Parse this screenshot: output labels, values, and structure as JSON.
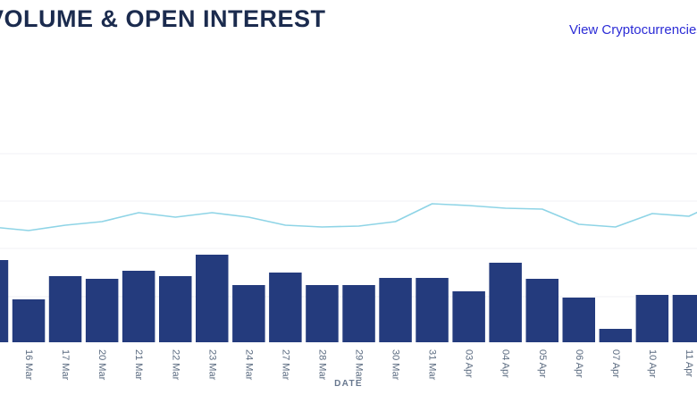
{
  "header": {
    "title": "VOLUME & OPEN INTEREST",
    "link_label": "View Cryptocurrencies"
  },
  "chart_data": {
    "type": "bar",
    "subtype": "combo_bar_line",
    "title": "VOLUME & OPEN INTEREST",
    "xlabel": "DATE",
    "ylabel": "",
    "y_axis_tick_labels_visible": false,
    "legend_position": "none",
    "grid": "horizontal",
    "categories": [
      "",
      "16 Mar",
      "17 Mar",
      "20 Mar",
      "21 Mar",
      "22 Mar",
      "23 Mar",
      "24 Mar",
      "27 Mar",
      "28 Mar",
      "29 Mar",
      "30 Mar",
      "31 Mar",
      "03 Apr",
      "04 Apr",
      "05 Apr",
      "06 Apr",
      "07 Apr",
      "10 Apr",
      "11 Apr"
    ],
    "first_bar_clipped_at_left_edge": true,
    "last_bar_clipped_at_right_edge": true,
    "units": "relative height (y-axis labels not visible in screenshot)",
    "series": [
      {
        "name": "Volume",
        "type": "bar",
        "color": "#243b7d",
        "values": [
          92,
          48,
          74,
          71,
          80,
          74,
          98,
          64,
          78,
          64,
          64,
          72,
          72,
          57,
          89,
          71,
          50,
          15,
          53,
          53
        ]
      },
      {
        "name": "Open Interest",
        "type": "line",
        "color": "#8ed4e6",
        "values": [
          129,
          125,
          131,
          135,
          145,
          140,
          145,
          140,
          131,
          129,
          130,
          135,
          155,
          153,
          150,
          149,
          132,
          129,
          144,
          141
        ]
      }
    ],
    "colors": {
      "bar": "#243b7d",
      "line": "#8ed4e6",
      "gridline": "#f1f1f4",
      "tick_label": "#5b6b80",
      "title": "#1b2b4e",
      "link": "#2c2cd6"
    }
  }
}
